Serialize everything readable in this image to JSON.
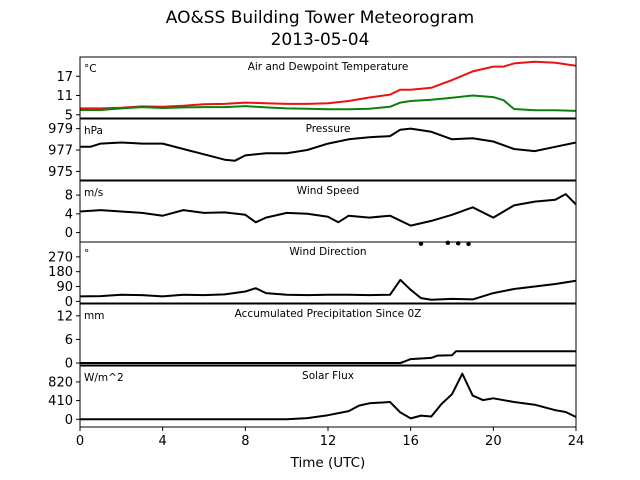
{
  "title": {
    "line1": "AO&SS Building Tower Meteorogram",
    "line2": "2013-05-04"
  },
  "xlabel": "Time (UTC)",
  "colors": {
    "temperature": "#e8140f",
    "dewpoint": "#0a820a",
    "default": "#000000"
  },
  "chart_data": [
    {
      "type": "line",
      "title": "Air and Dewpoint Temperature",
      "unit": "°C",
      "x": [
        0,
        1,
        2,
        3,
        4,
        5,
        6,
        7,
        8,
        9,
        10,
        11,
        12,
        13,
        14,
        15,
        15.5,
        16,
        17,
        18,
        19,
        20,
        20.5,
        21,
        22,
        23,
        24
      ],
      "series": [
        {
          "name": "",
          "color_key": "temperature",
          "values": [
            7.0,
            7.0,
            7.2,
            7.6,
            7.5,
            7.8,
            8.3,
            8.4,
            8.8,
            8.6,
            8.4,
            8.4,
            8.6,
            9.3,
            10.4,
            11.3,
            12.8,
            12.8,
            13.4,
            15.8,
            18.5,
            20.0,
            20.0,
            21.0,
            21.5,
            21.2,
            20.3
          ]
        },
        {
          "name": "",
          "color_key": "dewpoint",
          "values": [
            6.5,
            6.5,
            7.0,
            7.4,
            7.1,
            7.3,
            7.4,
            7.4,
            7.7,
            7.3,
            7.0,
            6.9,
            6.7,
            6.7,
            6.9,
            7.5,
            8.8,
            9.3,
            9.7,
            10.3,
            11.0,
            10.5,
            9.5,
            6.8,
            6.4,
            6.4,
            6.2
          ]
        }
      ],
      "yticks": [
        5,
        11,
        17
      ],
      "ylim": [
        4,
        23
      ]
    },
    {
      "type": "line",
      "title": "Pressure",
      "unit": "hPa",
      "x": [
        0,
        0.5,
        1,
        2,
        3,
        4,
        5,
        6,
        7,
        7.5,
        8,
        9,
        10,
        11,
        12,
        13,
        14,
        15,
        15.5,
        16,
        17,
        18,
        19,
        20,
        21,
        22,
        23,
        24
      ],
      "series": [
        {
          "name": "",
          "color_key": "default",
          "values": [
            977.3,
            977.3,
            977.6,
            977.7,
            977.6,
            977.6,
            977.1,
            976.6,
            976.1,
            976.0,
            976.5,
            976.7,
            976.7,
            977.0,
            977.6,
            978.0,
            978.2,
            978.3,
            978.9,
            979.0,
            978.7,
            978.0,
            978.1,
            977.8,
            977.1,
            976.9,
            977.3,
            977.7
          ]
        }
      ],
      "yticks": [
        975,
        977,
        979
      ],
      "ylim": [
        974.2,
        979.9
      ]
    },
    {
      "type": "line",
      "title": "Wind Speed",
      "unit": "m/s",
      "x": [
        0,
        1,
        2,
        3,
        4,
        5,
        6,
        7,
        8,
        8.5,
        9,
        10,
        11,
        12,
        12.5,
        13,
        14,
        15,
        16,
        17,
        18,
        19,
        20,
        21,
        22,
        23,
        23.5,
        24
      ],
      "series": [
        {
          "name": "",
          "color_key": "default",
          "values": [
            4.5,
            4.8,
            4.5,
            4.2,
            3.6,
            4.8,
            4.2,
            4.3,
            3.8,
            2.2,
            3.2,
            4.2,
            4.0,
            3.4,
            2.2,
            3.6,
            3.2,
            3.6,
            1.5,
            2.5,
            3.8,
            5.4,
            3.2,
            5.8,
            6.6,
            7.0,
            8.2,
            6.0
          ]
        }
      ],
      "yticks": [
        0,
        4,
        8
      ],
      "ylim": [
        -2,
        11
      ]
    },
    {
      "type": "line",
      "title": "Wind Direction",
      "unit": "°",
      "x": [
        0,
        1,
        2,
        3,
        4,
        5,
        6,
        7,
        8,
        8.5,
        9,
        10,
        11,
        12,
        13,
        14,
        15,
        15.5,
        16,
        16.5,
        17,
        18,
        19,
        20,
        21,
        22,
        23,
        24
      ],
      "series": [
        {
          "name": "",
          "color_key": "default",
          "values": [
            30,
            32,
            40,
            38,
            30,
            40,
            38,
            42,
            60,
            80,
            50,
            40,
            38,
            40,
            40,
            38,
            40,
            130,
            70,
            20,
            10,
            15,
            12,
            50,
            75,
            90,
            105,
            125
          ]
        }
      ],
      "scatter_points": [
        [
          16.5,
          350
        ],
        [
          17.8,
          355
        ],
        [
          18.3,
          352
        ],
        [
          18.8,
          348
        ]
      ],
      "yticks": [
        0,
        90,
        180,
        270
      ],
      "ylim": [
        -10,
        360
      ]
    },
    {
      "type": "line",
      "title": "Accumulated Precipitation Since 0Z",
      "unit": "mm",
      "x": [
        0,
        15.5,
        15.7,
        16,
        17,
        17.3,
        18,
        18.2,
        19,
        24
      ],
      "series": [
        {
          "name": "",
          "color_key": "default",
          "values": [
            0,
            0,
            0.4,
            1.0,
            1.3,
            1.9,
            2.0,
            3.0,
            3.0,
            3.0
          ]
        }
      ],
      "yticks": [
        0,
        6,
        12
      ],
      "ylim": [
        -0.5,
        15
      ]
    },
    {
      "type": "line",
      "title": "Solar Flux",
      "unit": "W/m^2",
      "x": [
        0,
        1,
        4,
        8,
        10,
        11,
        12,
        13,
        13.5,
        14,
        15,
        15.5,
        16,
        16.5,
        17,
        17.5,
        18,
        18.5,
        19,
        19.5,
        20,
        21,
        22,
        23,
        23.5,
        24
      ],
      "series": [
        {
          "name": "",
          "color_key": "default",
          "values": [
            0,
            0,
            0,
            0,
            0,
            25,
            90,
            180,
            300,
            350,
            380,
            150,
            20,
            80,
            60,
            340,
            550,
            1000,
            520,
            420,
            460,
            380,
            320,
            200,
            160,
            50
          ]
        }
      ],
      "yticks": [
        0,
        410,
        820
      ],
      "ylim": [
        -170,
        1170
      ]
    }
  ],
  "xaxis": {
    "ticks": [
      0,
      4,
      8,
      12,
      16,
      20,
      24
    ],
    "xlim": [
      0,
      24
    ]
  }
}
